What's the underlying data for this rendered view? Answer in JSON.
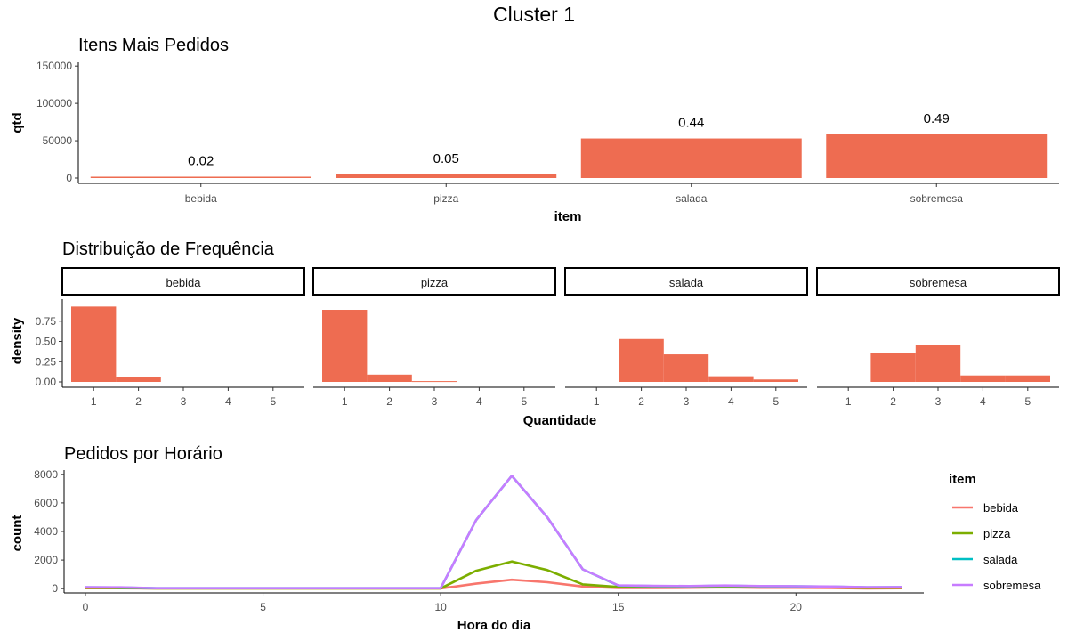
{
  "main_title": "Cluster 1",
  "colors": {
    "bar": "#EE6C51",
    "bebida": "#F8766D",
    "pizza": "#7CAE00",
    "salada": "#00BFC4",
    "sobremesa": "#C77CFF"
  },
  "chart_data": [
    {
      "type": "bar",
      "title": "Itens Mais Pedidos",
      "xlabel": "item",
      "ylabel": "qtd",
      "categories": [
        "bebida",
        "pizza",
        "salada",
        "sobremesa"
      ],
      "values": [
        1800,
        5000,
        53000,
        58500
      ],
      "labels": [
        "0.02",
        "0.05",
        "0.44",
        "0.49"
      ],
      "ylim": [
        0,
        155000
      ],
      "yticks": [
        0,
        50000,
        100000,
        150000
      ],
      "grid": false
    },
    {
      "type": "bar",
      "title": "Distribuição de Frequência",
      "xlabel": "Quantidade",
      "ylabel": "density",
      "x": [
        1,
        2,
        3,
        4,
        5
      ],
      "ylim": [
        0,
        1.0
      ],
      "yticks": [
        0.0,
        0.25,
        0.5,
        0.75
      ],
      "ytick_labels": [
        "0.00",
        "0.25",
        "0.50",
        "0.75"
      ],
      "facets": [
        {
          "name": "bebida",
          "values": [
            0.93,
            0.06,
            0.0,
            0.0,
            0.0
          ]
        },
        {
          "name": "pizza",
          "values": [
            0.89,
            0.09,
            0.01,
            0.0,
            0.0
          ]
        },
        {
          "name": "salada",
          "values": [
            0.0,
            0.53,
            0.34,
            0.07,
            0.03
          ]
        },
        {
          "name": "sobremesa",
          "values": [
            0.0,
            0.36,
            0.46,
            0.08,
            0.08
          ]
        }
      ],
      "grid": false
    },
    {
      "type": "line",
      "title": "Pedidos por Horário",
      "xlabel": "Hora do dia",
      "ylabel": "count",
      "xlim": [
        -0.6,
        23.6
      ],
      "ylim": [
        -300,
        8300
      ],
      "xticks": [
        0,
        5,
        10,
        15,
        20
      ],
      "yticks": [
        0,
        2000,
        4000,
        6000,
        8000
      ],
      "legend_title": "item",
      "legend_position": "right",
      "x": [
        0,
        1,
        2,
        3,
        4,
        5,
        6,
        7,
        8,
        9,
        10,
        11,
        12,
        13,
        14,
        15,
        16,
        17,
        18,
        19,
        20,
        21,
        22,
        23
      ],
      "series": [
        {
          "name": "bebida",
          "values": [
            30,
            30,
            10,
            10,
            10,
            10,
            10,
            10,
            10,
            10,
            10,
            350,
            620,
            450,
            150,
            50,
            40,
            60,
            90,
            60,
            60,
            40,
            20,
            30
          ]
        },
        {
          "name": "pizza",
          "values": [
            60,
            50,
            20,
            20,
            20,
            20,
            20,
            20,
            20,
            20,
            20,
            1250,
            1900,
            1300,
            300,
            120,
            100,
            110,
            140,
            120,
            110,
            90,
            60,
            70
          ]
        },
        {
          "name": "salada",
          "values": [
            90,
            80,
            30,
            30,
            30,
            30,
            30,
            30,
            30,
            30,
            30,
            4800,
            7900,
            5000,
            1350,
            220,
            180,
            170,
            210,
            170,
            160,
            140,
            90,
            100
          ]
        },
        {
          "name": "sobremesa",
          "values": [
            100,
            90,
            30,
            30,
            30,
            30,
            30,
            30,
            30,
            30,
            30,
            4800,
            7900,
            5000,
            1350,
            230,
            190,
            180,
            220,
            180,
            170,
            150,
            100,
            110
          ]
        }
      ],
      "grid": false
    }
  ]
}
